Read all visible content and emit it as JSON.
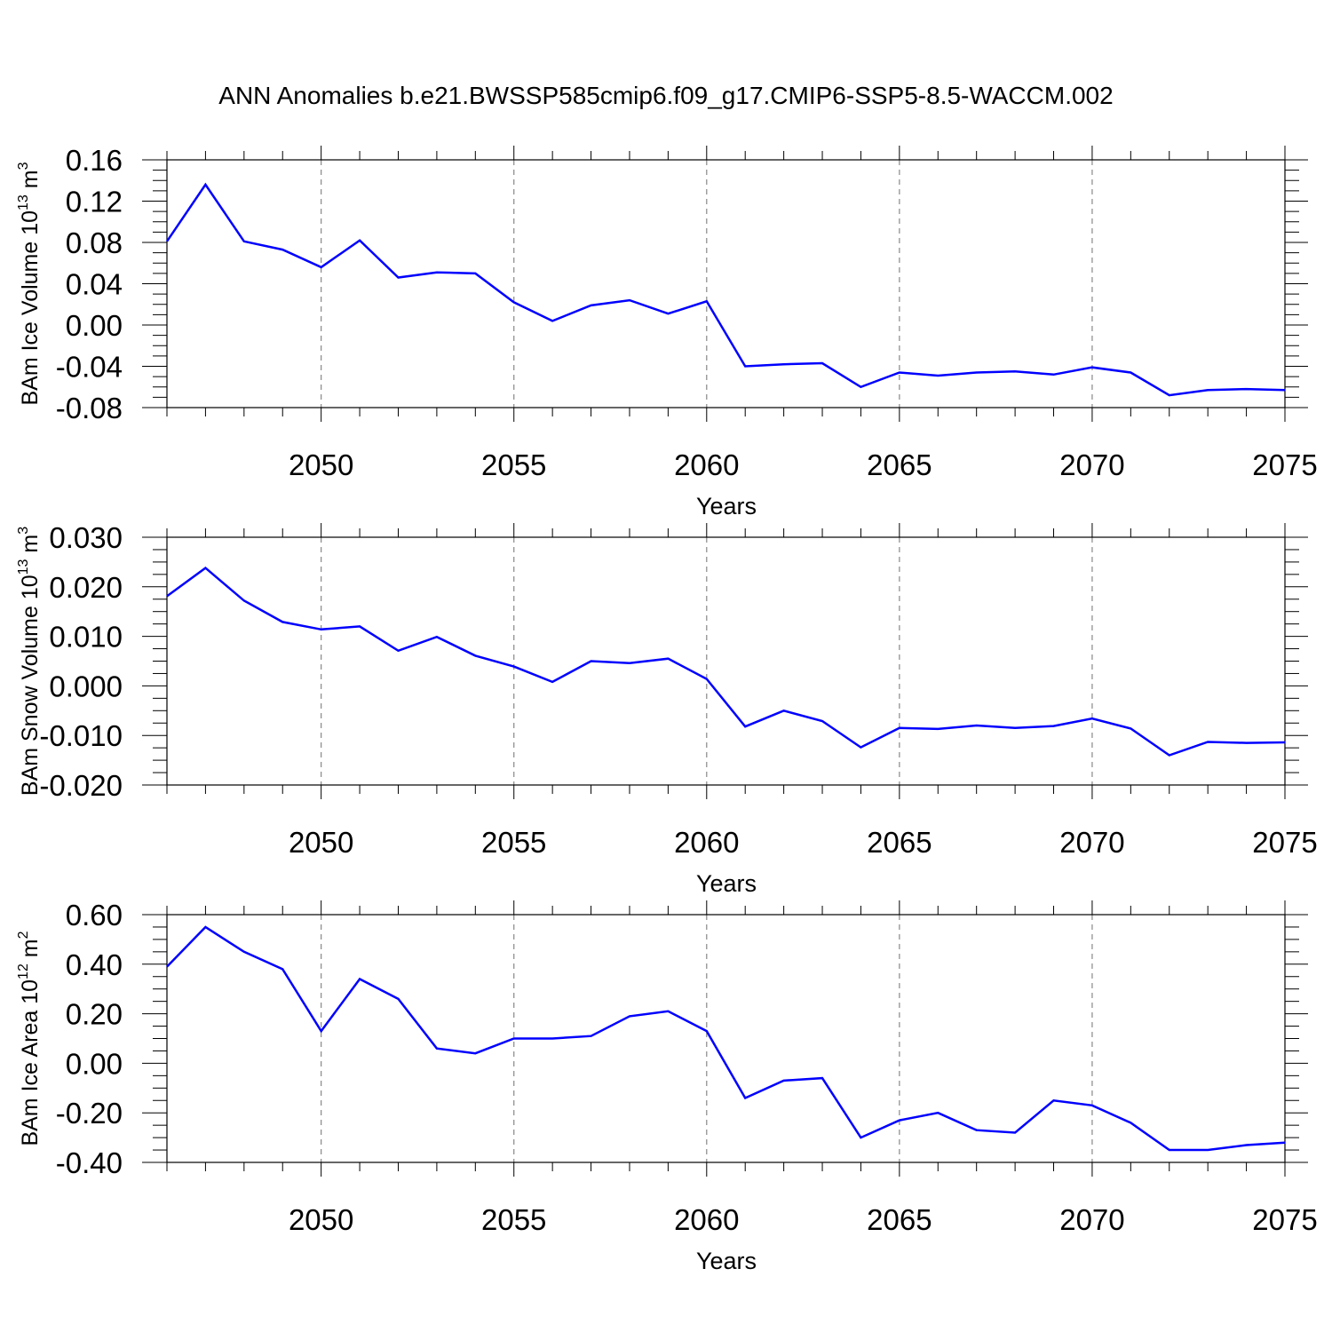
{
  "chart_data": {
    "title": "ANN Anomalies b.e21.BWSSP585cmip6.f09_g17.CMIP6-SSP5-8.5-WACCM.002",
    "line_color": "#0000ff",
    "grid": "dashed vertical lines at labeled years",
    "panels": [
      {
        "type": "line",
        "ylabel": {
          "text": "BAm Ice Volume 10",
          "sup1": "13",
          "unit": " m",
          "sup2": "3"
        },
        "xlabel": "Years",
        "ylim": [
          -0.08,
          0.16
        ],
        "yticks": [
          -0.08,
          -0.04,
          0.0,
          0.04,
          0.08,
          0.12,
          0.16
        ],
        "ytick_labels": [
          "-0.08",
          "-0.04",
          "0.00",
          "0.04",
          "0.08",
          "0.12",
          "0.16"
        ],
        "xlim": [
          2046,
          2075
        ],
        "xticks": [
          2050,
          2055,
          2060,
          2065,
          2070,
          2075
        ],
        "xtick_labels": [
          "2050",
          "2055",
          "2060",
          "2065",
          "2070",
          "2075"
        ],
        "x": [
          2046,
          2047,
          2048,
          2049,
          2050,
          2051,
          2052,
          2053,
          2054,
          2055,
          2056,
          2057,
          2058,
          2059,
          2060,
          2061,
          2062,
          2063,
          2064,
          2065,
          2066,
          2067,
          2068,
          2069,
          2070,
          2071,
          2072,
          2073,
          2074,
          2075
        ],
        "values": [
          0.081,
          0.136,
          0.081,
          0.073,
          0.056,
          0.082,
          0.046,
          0.051,
          0.05,
          0.022,
          0.004,
          0.019,
          0.024,
          0.011,
          0.023,
          -0.04,
          -0.038,
          -0.037,
          -0.06,
          -0.046,
          -0.049,
          -0.046,
          -0.045,
          -0.048,
          -0.041,
          -0.046,
          -0.068,
          -0.063,
          -0.062,
          -0.063
        ]
      },
      {
        "type": "line",
        "ylabel": {
          "text": "BAm Snow Volume 10",
          "sup1": "13",
          "unit": " m",
          "sup2": "3"
        },
        "xlabel": "Years",
        "ylim": [
          -0.02,
          0.03
        ],
        "yticks": [
          -0.02,
          -0.01,
          0.0,
          0.01,
          0.02,
          0.03
        ],
        "ytick_labels": [
          "-0.020",
          "-0.010",
          "0.000",
          "0.010",
          "0.020",
          "0.030"
        ],
        "xlim": [
          2046,
          2075
        ],
        "xticks": [
          2050,
          2055,
          2060,
          2065,
          2070,
          2075
        ],
        "xtick_labels": [
          "2050",
          "2055",
          "2060",
          "2065",
          "2070",
          "2075"
        ],
        "x": [
          2046,
          2047,
          2048,
          2049,
          2050,
          2051,
          2052,
          2053,
          2054,
          2055,
          2056,
          2057,
          2058,
          2059,
          2060,
          2061,
          2062,
          2063,
          2064,
          2065,
          2066,
          2067,
          2068,
          2069,
          2070,
          2071,
          2072,
          2073,
          2074,
          2075
        ],
        "values": [
          0.0181,
          0.0238,
          0.0172,
          0.0129,
          0.0114,
          0.012,
          0.0071,
          0.0099,
          0.0061,
          0.0039,
          0.0008,
          0.005,
          0.0046,
          0.0055,
          0.0014,
          -0.0082,
          -0.005,
          -0.0071,
          -0.0124,
          -0.0085,
          -0.0087,
          -0.008,
          -0.0085,
          -0.0081,
          -0.0066,
          -0.0086,
          -0.014,
          -0.0113,
          -0.0115,
          -0.0114
        ]
      },
      {
        "type": "line",
        "ylabel": {
          "text": "BAm Ice Area 10",
          "sup1": "12",
          "unit": " m",
          "sup2": "2"
        },
        "xlabel": "Years",
        "ylim": [
          -0.4,
          0.6
        ],
        "yticks": [
          -0.4,
          -0.2,
          0.0,
          0.2,
          0.4,
          0.6
        ],
        "ytick_labels": [
          "-0.40",
          "-0.20",
          "0.00",
          "0.20",
          "0.40",
          "0.60"
        ],
        "xlim": [
          2046,
          2075
        ],
        "xticks": [
          2050,
          2055,
          2060,
          2065,
          2070,
          2075
        ],
        "xtick_labels": [
          "2050",
          "2055",
          "2060",
          "2065",
          "2070",
          "2075"
        ],
        "x": [
          2046,
          2047,
          2048,
          2049,
          2050,
          2051,
          2052,
          2053,
          2054,
          2055,
          2056,
          2057,
          2058,
          2059,
          2060,
          2061,
          2062,
          2063,
          2064,
          2065,
          2066,
          2067,
          2068,
          2069,
          2070,
          2071,
          2072,
          2073,
          2074,
          2075
        ],
        "values": [
          0.39,
          0.55,
          0.45,
          0.38,
          0.13,
          0.34,
          0.26,
          0.06,
          0.04,
          0.1,
          0.1,
          0.11,
          0.19,
          0.21,
          0.13,
          -0.14,
          -0.07,
          -0.06,
          -0.3,
          -0.23,
          -0.2,
          -0.27,
          -0.28,
          -0.15,
          -0.17,
          -0.24,
          -0.35,
          -0.35,
          -0.33,
          -0.32
        ]
      }
    ]
  }
}
